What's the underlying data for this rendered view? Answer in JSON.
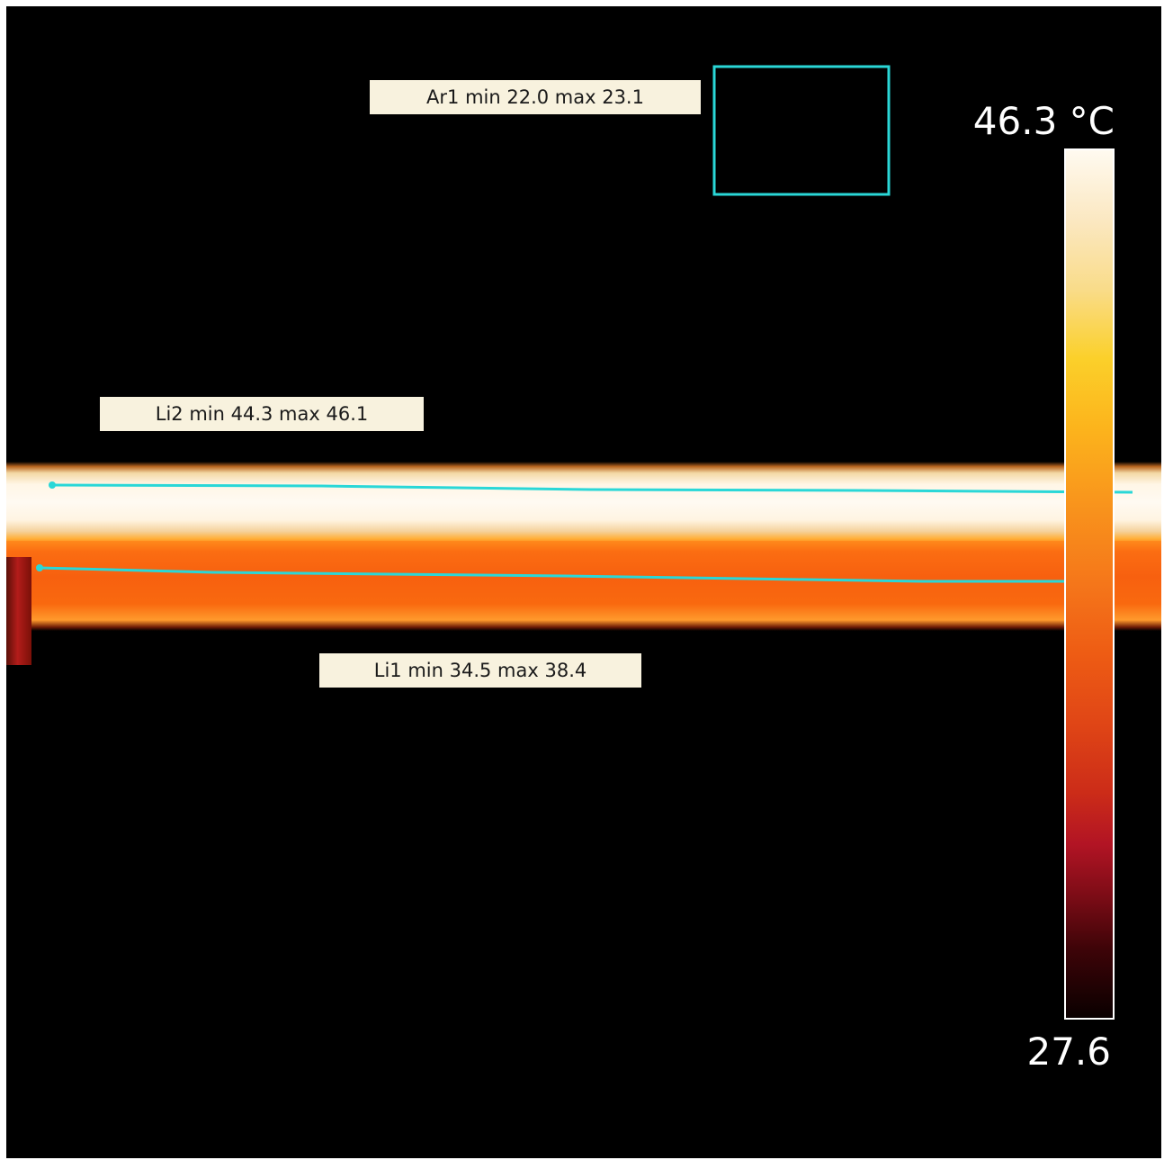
{
  "measurements": {
    "area1": {
      "label": "Ar1 min 22.0 max 23.1"
    },
    "line2": {
      "label": "Li2 min 44.3 max 46.1"
    },
    "line1": {
      "label": "Li1 min 34.5 max 38.4"
    }
  },
  "temperature_scale": {
    "max_label": "46.3 °C",
    "min_label": "27.6"
  },
  "colors": {
    "background": "#000000",
    "marker": "#2ad7d7",
    "label_bg": "#f8f2de",
    "scale_text": "#ffffff"
  },
  "palette": "iron"
}
